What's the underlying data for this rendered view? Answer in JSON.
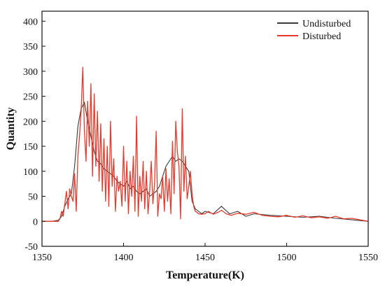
{
  "chart_data": {
    "type": "line",
    "title": "",
    "xlabel": "Temperature(K)",
    "ylabel": "Quantity",
    "xlim": [
      1350,
      1550
    ],
    "ylim": [
      -50,
      420
    ],
    "xticks": [
      1350,
      1400,
      1450,
      1500,
      1550
    ],
    "yticks": [
      -50,
      0,
      50,
      100,
      150,
      200,
      250,
      300,
      350,
      400
    ],
    "grid": false,
    "legend_position": "top-right",
    "series": [
      {
        "name": "Undisturbed",
        "color": "#3a3a3a",
        "x": [
          1350,
          1356,
          1360,
          1362,
          1364,
          1366,
          1368,
          1370,
          1372,
          1374,
          1376,
          1378,
          1380,
          1382,
          1384,
          1386,
          1388,
          1390,
          1392,
          1394,
          1396,
          1398,
          1400,
          1402,
          1404,
          1406,
          1408,
          1410,
          1412,
          1414,
          1416,
          1418,
          1420,
          1422,
          1424,
          1426,
          1428,
          1430,
          1432,
          1434,
          1436,
          1438,
          1440,
          1442,
          1444,
          1446,
          1448,
          1450,
          1455,
          1460,
          1465,
          1470,
          1475,
          1480,
          1490,
          1500,
          1510,
          1520,
          1530,
          1540,
          1550
        ],
        "y": [
          0,
          0,
          2,
          10,
          30,
          45,
          55,
          110,
          190,
          225,
          238,
          200,
          170,
          140,
          120,
          115,
          105,
          100,
          95,
          90,
          80,
          75,
          70,
          80,
          65,
          70,
          60,
          55,
          60,
          65,
          50,
          55,
          60,
          70,
          90,
          110,
          120,
          130,
          120,
          125,
          120,
          110,
          100,
          40,
          25,
          20,
          15,
          20,
          15,
          30,
          15,
          20,
          10,
          15,
          12,
          10,
          8,
          10,
          6,
          3,
          0
        ]
      },
      {
        "name": "Disturbed",
        "color": "#e8392b",
        "x": [
          1350,
          1356,
          1360,
          1361,
          1362,
          1363,
          1364,
          1365,
          1366,
          1367,
          1368,
          1369,
          1370,
          1371,
          1372,
          1373,
          1374,
          1375,
          1376,
          1377,
          1378,
          1379,
          1380,
          1381,
          1382,
          1383,
          1384,
          1385,
          1386,
          1387,
          1388,
          1389,
          1390,
          1391,
          1392,
          1393,
          1394,
          1395,
          1396,
          1397,
          1398,
          1399,
          1400,
          1401,
          1402,
          1403,
          1404,
          1405,
          1406,
          1407,
          1408,
          1409,
          1410,
          1411,
          1412,
          1413,
          1414,
          1415,
          1416,
          1417,
          1418,
          1419,
          1420,
          1421,
          1422,
          1423,
          1424,
          1425,
          1426,
          1427,
          1428,
          1429,
          1430,
          1431,
          1432,
          1433,
          1434,
          1435,
          1436,
          1437,
          1438,
          1439,
          1440,
          1441,
          1442,
          1443,
          1444,
          1445,
          1446,
          1448,
          1450,
          1452,
          1455,
          1458,
          1460,
          1463,
          1466,
          1470,
          1475,
          1480,
          1485,
          1490,
          1495,
          1500,
          1505,
          1510,
          1515,
          1520,
          1525,
          1530,
          1535,
          1540,
          1545,
          1550
        ],
        "y": [
          0,
          0,
          0,
          5,
          20,
          10,
          35,
          60,
          25,
          65,
          50,
          40,
          95,
          20,
          130,
          170,
          220,
          308,
          180,
          120,
          240,
          150,
          275,
          90,
          255,
          110,
          220,
          80,
          195,
          60,
          165,
          40,
          150,
          30,
          200,
          70,
          125,
          20,
          90,
          60,
          80,
          30,
          150,
          40,
          120,
          15,
          100,
          50,
          130,
          20,
          210,
          10,
          90,
          40,
          120,
          25,
          100,
          15,
          60,
          120,
          35,
          75,
          180,
          10,
          55,
          45,
          90,
          20,
          105,
          40,
          85,
          15,
          160,
          55,
          200,
          140,
          110,
          5,
          225,
          60,
          130,
          45,
          70,
          100,
          55,
          30,
          20,
          18,
          15,
          14,
          15,
          20,
          14,
          18,
          22,
          15,
          12,
          16,
          14,
          18,
          12,
          10,
          9,
          12,
          8,
          11,
          7,
          9,
          6,
          10,
          5,
          6,
          3,
          0
        ]
      }
    ]
  }
}
